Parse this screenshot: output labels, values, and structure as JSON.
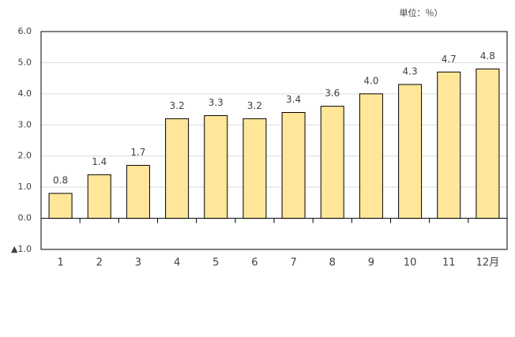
{
  "chart_data": {
    "type": "bar",
    "unit_label": "単位：％）",
    "categories": [
      "1",
      "2",
      "3",
      "4",
      "5",
      "6",
      "7",
      "8",
      "9",
      "10",
      "11",
      "12月"
    ],
    "values": [
      0.8,
      1.4,
      1.7,
      3.2,
      3.3,
      3.2,
      3.4,
      3.6,
      4.0,
      4.3,
      4.7,
      4.8
    ],
    "value_labels": [
      "0.8",
      "1.4",
      "1.7",
      "3.2",
      "3.3",
      "3.2",
      "3.4",
      "3.6",
      "4.0",
      "4.3",
      "4.7",
      "4.8"
    ],
    "color": "#ffe699",
    "ylim": [
      -1,
      6
    ],
    "yticks": [
      {
        "value": -1,
        "label": "▲1.0"
      },
      {
        "value": 0,
        "label": "0.0"
      },
      {
        "value": 1,
        "label": "1.0"
      },
      {
        "value": 2,
        "label": "2.0"
      },
      {
        "value": 3,
        "label": "3.0"
      },
      {
        "value": 4,
        "label": "4.0"
      },
      {
        "value": 5,
        "label": "5.0"
      },
      {
        "value": 6,
        "label": "6.0"
      }
    ],
    "grid": true
  }
}
